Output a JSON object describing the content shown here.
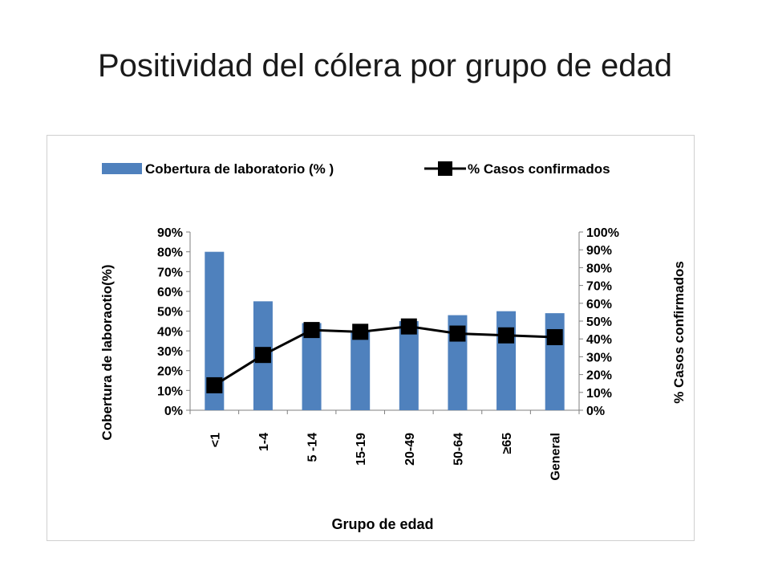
{
  "title": "Positividad del cólera por grupo de edad",
  "chart_data": {
    "type": "bar",
    "categories": [
      "<1",
      "1-4",
      "5 -14",
      "15-19",
      "20-49",
      "50-64",
      "≥65",
      "General"
    ],
    "series": [
      {
        "name": "Cobertura de laboratorio (% )",
        "type": "bar",
        "axis": "left",
        "color": "#4f81bd",
        "values": [
          80,
          55,
          44,
          40,
          45,
          48,
          50,
          49
        ]
      },
      {
        "name": "% Casos confirmados",
        "type": "line",
        "axis": "right",
        "color": "#000000",
        "values": [
          14,
          31,
          45,
          44,
          47,
          43,
          42,
          41
        ]
      }
    ],
    "xlabel": "Grupo de edad",
    "ylabel_left": "Cobertura de laboraotio(%)",
    "ylabel_right": "% Casos confirmados",
    "ylim_left": [
      0,
      90
    ],
    "ylim_right": [
      0,
      100
    ],
    "yticks_left": [
      "0%",
      "10%",
      "20%",
      "30%",
      "40%",
      "50%",
      "60%",
      "70%",
      "80%",
      "90%"
    ],
    "yticks_right": [
      "0%",
      "10%",
      "20%",
      "30%",
      "40%",
      "50%",
      "60%",
      "70%",
      "80%",
      "90%",
      "100%"
    ],
    "legend_position": "top",
    "grid": false
  }
}
